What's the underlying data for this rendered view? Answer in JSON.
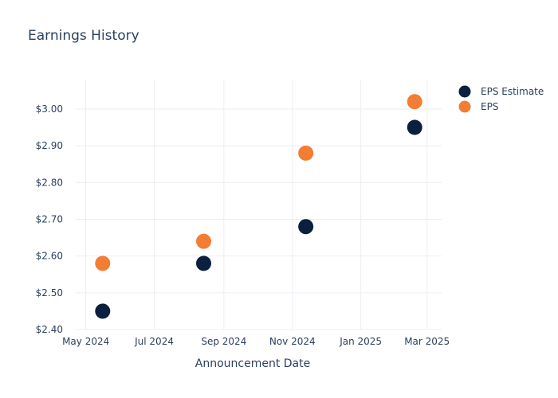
{
  "chart_data": {
    "type": "scatter",
    "title": "Earnings History",
    "xlabel": "Announcement Date",
    "ylabel": "",
    "x_ticks": [
      "May 2024",
      "Jul 2024",
      "Sep 2024",
      "Nov 2024",
      "Jan 2025",
      "Mar 2025"
    ],
    "x_tick_dates": [
      "2024-05-01",
      "2024-07-01",
      "2024-09-01",
      "2024-11-01",
      "2025-01-01",
      "2025-03-01"
    ],
    "xlim": [
      "2024-04-22",
      "2025-03-14"
    ],
    "y_ticks": [
      "$2.40",
      "$2.50",
      "$2.60",
      "$2.70",
      "$2.80",
      "$2.90",
      "$3.00"
    ],
    "y_tick_values": [
      2.4,
      2.5,
      2.6,
      2.7,
      2.8,
      2.9,
      3.0
    ],
    "ylim": [
      2.4,
      3.08
    ],
    "grid": true,
    "legend_position": "top-right",
    "x": [
      "2024-05-16",
      "2024-08-14",
      "2024-11-13",
      "2025-02-18"
    ],
    "series": [
      {
        "name": "EPS Estimate",
        "color": "#0b1f3f",
        "values": [
          2.45,
          2.58,
          2.68,
          2.95
        ]
      },
      {
        "name": "EPS",
        "color": "#f27d33",
        "values": [
          2.58,
          2.64,
          2.88,
          3.02
        ]
      }
    ]
  }
}
